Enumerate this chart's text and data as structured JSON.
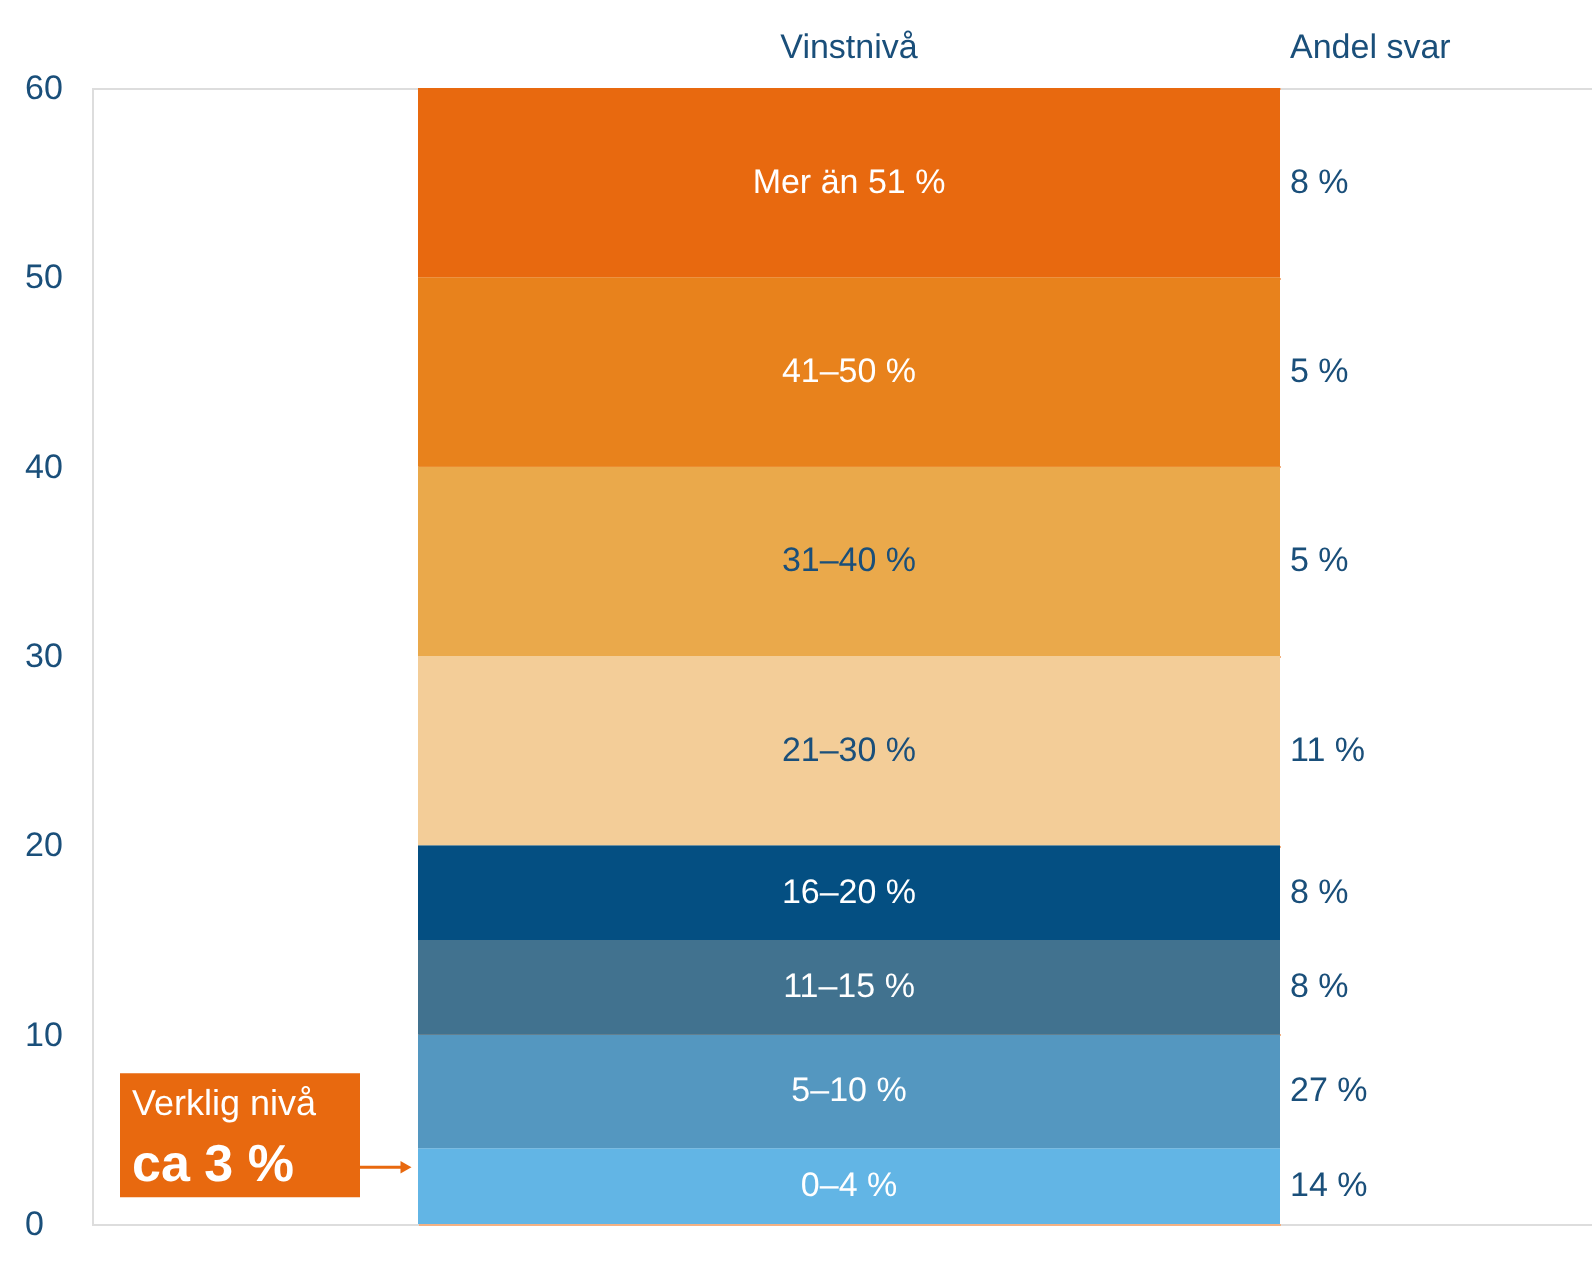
{
  "chart_data": {
    "type": "bar",
    "stacked": true,
    "categories": [
      null
    ],
    "xlabel": "Vinstnivå",
    "ylim": [
      0,
      60
    ],
    "yticks": [
      0,
      10,
      20,
      30,
      40,
      50,
      60
    ],
    "grid": "y",
    "tick_labels": "y",
    "series": [
      {
        "name": "0–4 %",
        "color": "#62b5e5",
        "values": [
          4
        ]
      },
      {
        "name": "5–10 %",
        "color": "#5497c0",
        "values": [
          6
        ]
      },
      {
        "name": "11–15 %",
        "color": "#41728f",
        "values": [
          5
        ]
      },
      {
        "name": "16–20 %",
        "color": "#044f82",
        "values": [
          5
        ]
      },
      {
        "name": "21–30 %",
        "color": "#f3cd98",
        "values": [
          10
        ]
      },
      {
        "name": "31–40 %",
        "color": "#eaa94b",
        "values": [
          10
        ]
      },
      {
        "name": "41–50 %",
        "color": "#e8821c",
        "values": [
          10
        ]
      },
      {
        "name": "Mer än 51 %",
        "color": "#e8690f",
        "values": [
          10
        ]
      }
    ],
    "annotations": [
      "Andel svar",
      "14 %",
      "27 %",
      "8 %",
      "8 %",
      "11 %",
      "5 %",
      "5 %",
      "8 %"
    ],
    "ref_lines": [
      {
        "axis": "y",
        "value": 3,
        "label": "Verklig nivå\nca 3 %",
        "color": "#e8690f"
      }
    ]
  }
}
